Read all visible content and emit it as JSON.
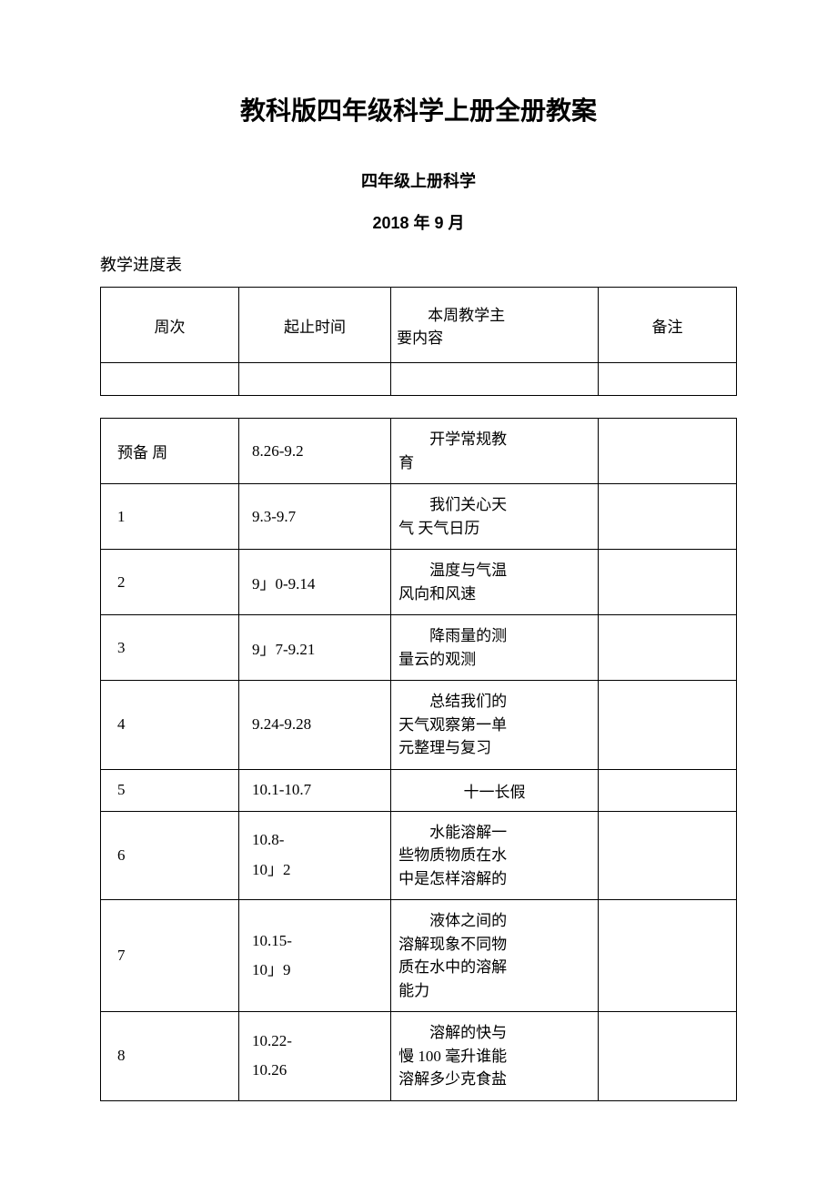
{
  "title": "教科版四年级科学上册全册教案",
  "subtitle": "四年级上册科学",
  "date": "2018 年 9 月",
  "tableLabel": "教学进度表",
  "header": {
    "col1": "周次",
    "col2": "起止时间",
    "col3_line1": "本周教学主",
    "col3_line2": "要内容",
    "col4": "备注"
  },
  "rows": [
    {
      "col1": "预备 周",
      "col2": "8.26-9.2",
      "col3_line1": "开学常规教",
      "col3_line2": "育",
      "col4": ""
    },
    {
      "col1": "1",
      "col2": "9.3-9.7",
      "col3_line1": "我们关心天",
      "col3_line2": "气 天气日历",
      "col4": ""
    },
    {
      "col1": "2",
      "col2": "9」0-9.14",
      "col3_line1": "温度与气温",
      "col3_line2": "风向和风速",
      "col4": ""
    },
    {
      "col1": "3",
      "col2": "9」7-9.21",
      "col3_line1": "降雨量的测",
      "col3_line2": "量云的观测",
      "col4": ""
    },
    {
      "col1": "4",
      "col2": "9.24-9.28",
      "col3_line1": "总结我们的",
      "col3_line2": "天气观察第一单",
      "col3_line3": "元整理与复习",
      "col4": ""
    },
    {
      "col1": "5",
      "col2": "10.1-10.7",
      "col3_center": "十一长假",
      "col4": ""
    },
    {
      "col1": "6",
      "col2_line1": "10.8-",
      "col2_line2": "10」2",
      "col3_line1": "水能溶解一",
      "col3_line2": "些物质物质在水",
      "col3_line3": "中是怎样溶解的",
      "col4": ""
    },
    {
      "col1": "7",
      "col2_line1": "10.15-",
      "col2_line2": "10」9",
      "col3_line1": "液体之间的",
      "col3_line2": "溶解现象不同物",
      "col3_line3": "质在水中的溶解",
      "col3_line4": "能力",
      "col4": ""
    },
    {
      "col1": "8",
      "col2_line1": "10.22-",
      "col2_line2": "10.26",
      "col3_line1": "溶解的快与",
      "col3_line2": "慢 100 毫升谁能",
      "col3_line3": "溶解多少克食盐",
      "col4": ""
    }
  ]
}
